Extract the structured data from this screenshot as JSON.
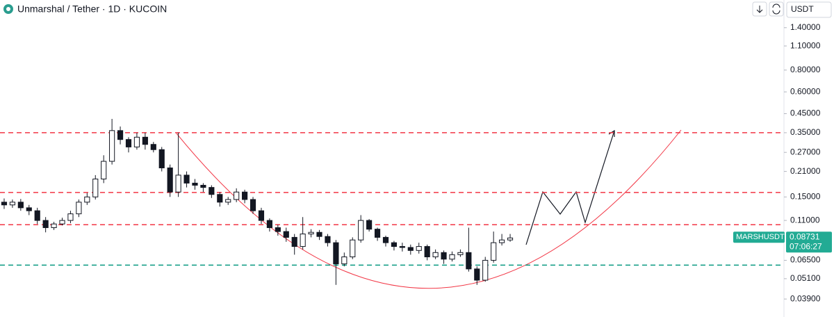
{
  "chart_data": {
    "type": "candlestick",
    "title": "Unmarshal / Tether · 1D · KUCOIN",
    "currency": "USDT",
    "log_scale": true,
    "ylim": [
      0.0325,
      1.56
    ],
    "yticks": [
      {
        "value": 1.4,
        "label": "1.40000"
      },
      {
        "value": 1.1,
        "label": "1.10000"
      },
      {
        "value": 0.8,
        "label": "0.80000"
      },
      {
        "value": 0.6,
        "label": "0.60000"
      },
      {
        "value": 0.45,
        "label": "0.45000"
      },
      {
        "value": 0.35,
        "label": "0.35000"
      },
      {
        "value": 0.27,
        "label": "0.27000"
      },
      {
        "value": 0.21,
        "label": "0.21000"
      },
      {
        "value": 0.15,
        "label": "0.15000"
      },
      {
        "value": 0.11,
        "label": "0.11000"
      },
      {
        "value": 0.065,
        "label": "0.06500"
      },
      {
        "value": 0.051,
        "label": "0.05100"
      },
      {
        "value": 0.039,
        "label": "0.03900"
      }
    ],
    "up_color": "#ffffff",
    "down_color": "#131722",
    "open": [
      0.14,
      0.135,
      0.14,
      0.13,
      0.125,
      0.11,
      0.1,
      0.105,
      0.11,
      0.12,
      0.14,
      0.15,
      0.19,
      0.24,
      0.36,
      0.32,
      0.29,
      0.33,
      0.3,
      0.28,
      0.22,
      0.16,
      0.2,
      0.18,
      0.175,
      0.17,
      0.155,
      0.14,
      0.145,
      0.16,
      0.145,
      0.125,
      0.11,
      0.1,
      0.095,
      0.088,
      0.078,
      0.092,
      0.094,
      0.089,
      0.082,
      0.062,
      0.068,
      0.085,
      0.11,
      0.098,
      0.088,
      0.082,
      0.078,
      0.077,
      0.074,
      0.078,
      0.068,
      0.072,
      0.066,
      0.07,
      0.072,
      0.058,
      0.05,
      0.065,
      0.082,
      0.085
    ],
    "high": [
      0.147,
      0.145,
      0.146,
      0.135,
      0.13,
      0.115,
      0.108,
      0.114,
      0.125,
      0.145,
      0.158,
      0.2,
      0.26,
      0.42,
      0.38,
      0.33,
      0.35,
      0.35,
      0.31,
      0.29,
      0.23,
      0.35,
      0.21,
      0.19,
      0.18,
      0.175,
      0.16,
      0.15,
      0.168,
      0.165,
      0.15,
      0.13,
      0.113,
      0.104,
      0.1,
      0.092,
      0.115,
      0.098,
      0.097,
      0.092,
      0.085,
      0.072,
      0.088,
      0.118,
      0.112,
      0.1,
      0.09,
      0.084,
      0.082,
      0.08,
      0.082,
      0.08,
      0.075,
      0.074,
      0.073,
      0.075,
      0.1,
      0.06,
      0.068,
      0.095,
      0.092,
      0.092
    ],
    "low": [
      0.128,
      0.13,
      0.125,
      0.118,
      0.105,
      0.094,
      0.097,
      0.103,
      0.106,
      0.115,
      0.135,
      0.145,
      0.18,
      0.23,
      0.3,
      0.27,
      0.28,
      0.28,
      0.27,
      0.21,
      0.15,
      0.15,
      0.17,
      0.165,
      0.16,
      0.148,
      0.132,
      0.135,
      0.14,
      0.138,
      0.12,
      0.105,
      0.095,
      0.09,
      0.083,
      0.07,
      0.075,
      0.088,
      0.085,
      0.078,
      0.047,
      0.06,
      0.066,
      0.082,
      0.095,
      0.084,
      0.078,
      0.074,
      0.073,
      0.07,
      0.071,
      0.065,
      0.066,
      0.062,
      0.064,
      0.068,
      0.056,
      0.047,
      0.049,
      0.063,
      0.079,
      0.083
    ],
    "close": [
      0.135,
      0.14,
      0.13,
      0.125,
      0.11,
      0.1,
      0.105,
      0.11,
      0.12,
      0.14,
      0.15,
      0.19,
      0.24,
      0.36,
      0.32,
      0.29,
      0.33,
      0.3,
      0.28,
      0.22,
      0.16,
      0.2,
      0.18,
      0.175,
      0.17,
      0.155,
      0.14,
      0.145,
      0.16,
      0.145,
      0.125,
      0.11,
      0.1,
      0.095,
      0.088,
      0.078,
      0.092,
      0.094,
      0.089,
      0.082,
      0.062,
      0.068,
      0.085,
      0.11,
      0.098,
      0.088,
      0.082,
      0.078,
      0.077,
      0.074,
      0.078,
      0.068,
      0.072,
      0.066,
      0.07,
      0.072,
      0.058,
      0.05,
      0.065,
      0.082,
      0.085,
      0.0873
    ],
    "levels": [
      {
        "value": 0.35,
        "color": "#f23645"
      },
      {
        "value": 0.159,
        "color": "#f23645"
      },
      {
        "value": 0.104,
        "color": "#f23645"
      },
      {
        "value": 0.061,
        "color": "#089981"
      }
    ],
    "last_price": {
      "symbol": "MARSHUSDT",
      "value": 0.08731,
      "label": "0.08731",
      "countdown": "07:06:27",
      "color": "#22ab94"
    }
  }
}
